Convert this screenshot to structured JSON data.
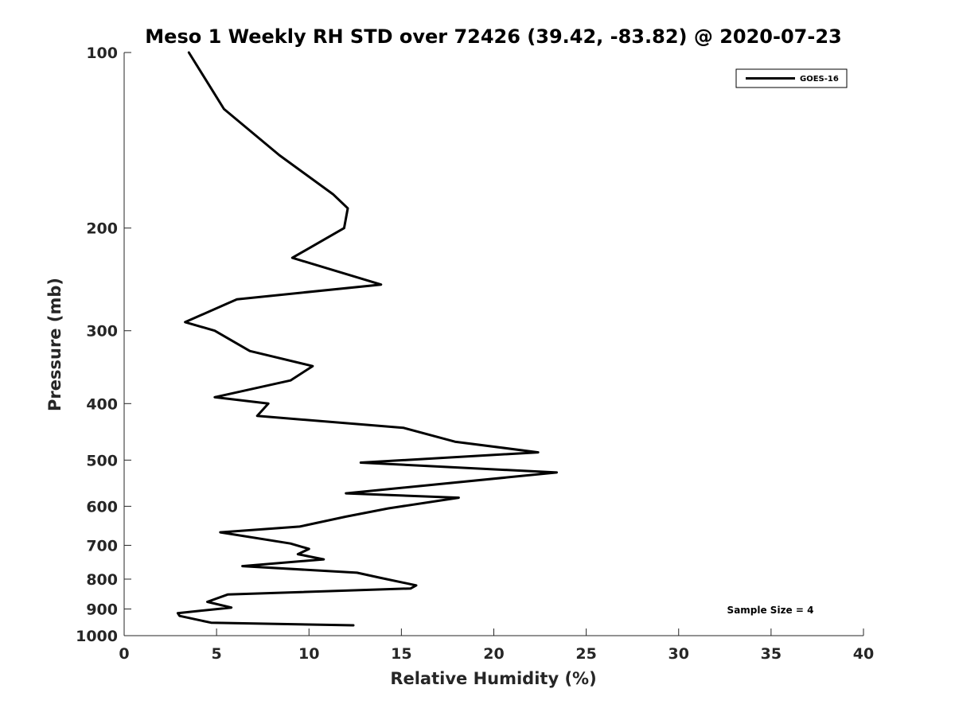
{
  "chart_data": {
    "type": "line",
    "title": "Meso 1 Weekly RH STD over 72426 (39.42, -83.82) @ 2020-07-23",
    "xlabel": "Relative Humidity (%)",
    "ylabel": "Pressure (mb)",
    "xlim": [
      0,
      40
    ],
    "ylim": [
      100,
      1000
    ],
    "yscale": "log",
    "yreversed": true,
    "x_ticks": [
      0,
      5,
      10,
      15,
      20,
      25,
      30,
      35,
      40
    ],
    "x_tick_labels": [
      "0",
      "5",
      "10",
      "15",
      "20",
      "25",
      "30",
      "35",
      "40"
    ],
    "y_ticks": [
      100,
      200,
      300,
      400,
      500,
      600,
      700,
      800,
      900,
      1000
    ],
    "y_tick_labels": [
      "100",
      "200",
      "300",
      "400",
      "500",
      "600",
      "700",
      "800",
      "900",
      "1000"
    ],
    "grid": false,
    "legend_position": "top-right",
    "annotation": "Sample Size = 4",
    "series": [
      {
        "name": "GOES-16",
        "color": "#000000",
        "x": [
          3.5,
          5.4,
          8.4,
          11.3,
          12.1,
          11.9,
          9.1,
          13.9,
          6.1,
          3.3,
          4.9,
          6.8,
          10.2,
          9.0,
          4.9,
          7.8,
          7.2,
          15.1,
          17.9,
          22.4,
          12.8,
          23.4,
          12.0,
          18.1,
          14.3,
          12.0,
          9.5,
          5.2,
          9.0,
          10.0,
          9.4,
          10.8,
          6.4,
          12.6,
          13.8,
          15.8,
          15.5,
          5.6,
          4.5,
          5.8,
          2.9,
          3.0,
          4.7,
          12.4
        ],
        "y": [
          100,
          125,
          150,
          175,
          185,
          200,
          225,
          250,
          265,
          290,
          300,
          325,
          345,
          365,
          390,
          400,
          420,
          440,
          465,
          485,
          505,
          525,
          570,
          580,
          605,
          625,
          650,
          665,
          695,
          710,
          725,
          740,
          760,
          780,
          795,
          820,
          830,
          850,
          875,
          895,
          915,
          925,
          950,
          960
        ]
      }
    ]
  }
}
